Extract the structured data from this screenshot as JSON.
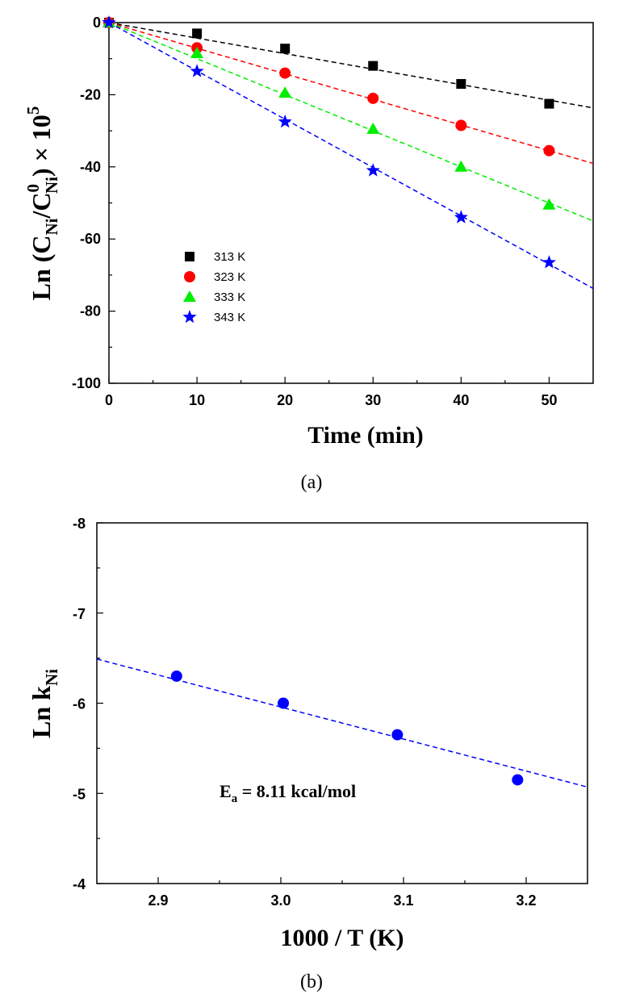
{
  "chart_data": [
    {
      "type": "scatter",
      "panel_label": "(a)",
      "xlabel": "Time (min)",
      "ylabel": {
        "prefix": "Ln (C",
        "sub1": "Ni",
        "mid": "/C",
        "sup0": "0",
        "sub2": "Ni",
        "end": ") × 10",
        "sup5": "5"
      },
      "xlim": [
        0,
        55
      ],
      "ylim": [
        -100,
        0
      ],
      "x_ticks": [
        0,
        10,
        20,
        30,
        40,
        50
      ],
      "y_ticks": [
        0,
        -20,
        -40,
        -60,
        -80,
        -100
      ],
      "grid": false,
      "legend_position": "bottom-left",
      "fit_lines": "dashed",
      "series": [
        {
          "name": "313 K",
          "marker": "square",
          "color": "#000000",
          "x": [
            0,
            10,
            20,
            30,
            40,
            50
          ],
          "y": [
            0,
            -3,
            -7.2,
            -12,
            -17,
            -22.5
          ],
          "fit_slope": -0.43
        },
        {
          "name": "323 K",
          "marker": "circle",
          "color": "#ff0000",
          "x": [
            0,
            10,
            20,
            30,
            40,
            50
          ],
          "y": [
            0,
            -7,
            -14,
            -21,
            -28.5,
            -35.5
          ],
          "fit_slope": -0.71
        },
        {
          "name": "333 K",
          "marker": "triangle",
          "color": "#00ee00",
          "x": [
            0,
            10,
            20,
            30,
            40,
            50
          ],
          "y": [
            0,
            -8.5,
            -19.5,
            -29.5,
            -40,
            -50.5
          ],
          "fit_slope": -1.0
        },
        {
          "name": "343 K",
          "marker": "star",
          "color": "#0000ff",
          "x": [
            0,
            10,
            20,
            30,
            40,
            50
          ],
          "y": [
            0,
            -13.5,
            -27.5,
            -41,
            -54,
            -66.5
          ],
          "fit_slope": -1.34
        }
      ]
    },
    {
      "type": "scatter",
      "panel_label": "(b)",
      "xlabel": "1000 / T (K)",
      "ylabel": {
        "prefix": "Ln k",
        "sub": "Ni"
      },
      "xlim": [
        2.85,
        3.25
      ],
      "ylim": [
        -4,
        -8
      ],
      "y_axis_inverted": true,
      "x_ticks": [
        2.9,
        3.0,
        3.1,
        3.2
      ],
      "y_ticks": [
        -8,
        -7,
        -6,
        -5,
        -4
      ],
      "grid": false,
      "annotation": {
        "prefix": "E",
        "sub": "a",
        "text": " = 8.11 kcal/mol"
      },
      "series": [
        {
          "marker": "circle",
          "color": "#0000ff",
          "x": [
            2.915,
            3.002,
            3.095,
            3.193
          ],
          "y": [
            -6.3,
            -6.0,
            -5.65,
            -5.15
          ]
        }
      ],
      "fit_line": {
        "x": [
          2.85,
          3.25
        ],
        "y": [
          -6.49,
          -5.07
        ],
        "style": "dashed",
        "color": "#0000ff"
      }
    }
  ]
}
